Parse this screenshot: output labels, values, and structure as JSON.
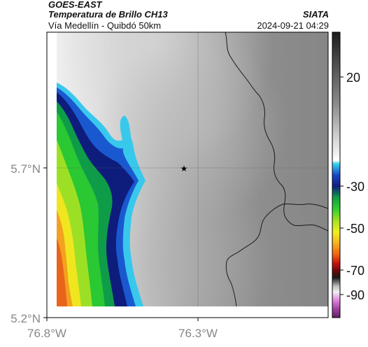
{
  "header": {
    "satellite": "GOES-EAST",
    "product": "Temperatura de Brillo CH13",
    "organization": "SIATA",
    "subtitle": "Vía Medellín - Quibdó 50km",
    "datetime": "2024-09-21 04:29"
  },
  "map": {
    "lat_ticks": [
      {
        "value": 5.7,
        "label": "5.7°N"
      },
      {
        "value": 5.2,
        "label": "5.2°N"
      }
    ],
    "lon_ticks": [
      {
        "value": -76.8,
        "label": "76.8°W"
      },
      {
        "value": -76.3,
        "label": "76.3°W"
      }
    ],
    "marker_icon": "star-icon"
  },
  "colorbar": {
    "labels": [
      "20",
      "-30",
      "-50",
      "-70",
      "-90"
    ]
  },
  "colors": {
    "cold_blue": "#10208a",
    "cloud_green": "#22c02a",
    "cloud_yellow": "#d8e820",
    "cloud_orange": "#f08c18",
    "land_gray": "#8c8c8c"
  }
}
